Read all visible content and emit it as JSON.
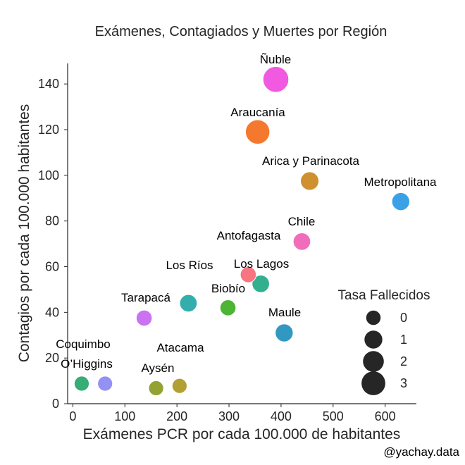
{
  "chart_data": {
    "type": "scatter",
    "title": "Exámenes, Contagiados y Muertes por Región",
    "xlabel": "Exámenes PCR por cada 100.000 de habitantes",
    "ylabel": "Contagios por cada 100.000 habitantes",
    "xlim": [
      -10,
      660
    ],
    "ylim": [
      0,
      149
    ],
    "xticks": [
      "0",
      "100",
      "200",
      "300",
      "400",
      "500",
      "600"
    ],
    "yticks": [
      "0",
      "20",
      "40",
      "60",
      "80",
      "100",
      "120",
      "140"
    ],
    "grid": false,
    "points": [
      {
        "label": "Ñuble",
        "x": 390,
        "y": 142,
        "size": 2.8,
        "color": "#f15ae0"
      },
      {
        "label": "Araucanía",
        "x": 355,
        "y": 119,
        "size": 2.5,
        "color": "#f4792e"
      },
      {
        "label": "Arica y Parinacota",
        "x": 455,
        "y": 97.5,
        "size": 1.3,
        "color": "#cf9130"
      },
      {
        "label": "Metropolitana",
        "x": 630,
        "y": 88.5,
        "size": 1.2,
        "color": "#3aa1e7"
      },
      {
        "label": "Chile",
        "x": 440,
        "y": 71,
        "size": 1.1,
        "color": "#f16dbb"
      },
      {
        "label": "Antofagasta",
        "x": 440,
        "y": 71,
        "size": 0,
        "color": "#f16dbb"
      },
      {
        "label": "Los Lagos",
        "x": 361,
        "y": 52.5,
        "size": 1.1,
        "color": "#32b08e"
      },
      {
        "label": "Los Ríos",
        "x": 337,
        "y": 56.5,
        "size": 0.8,
        "color": "#f77480"
      },
      {
        "label": "Biobío",
        "x": 298,
        "y": 42,
        "size": 0.8,
        "color": "#4db434"
      },
      {
        "label": "Tarapacá",
        "x": 222,
        "y": 44,
        "size": 1.1,
        "color": "#34adad"
      },
      {
        "label": "Maule",
        "x": 406,
        "y": 31,
        "size": 1.2,
        "color": "#3199c1"
      },
      {
        "label": "",
        "x": 137,
        "y": 37.5,
        "size": 0.8,
        "color": "#cb72f3"
      },
      {
        "label": "O’Higgins",
        "x": 17,
        "y": 8.8,
        "size": 0.6,
        "color": "#36ad76"
      },
      {
        "label": "Coquimbo",
        "x": 62,
        "y": 8.8,
        "size": 0.6,
        "color": "#9590f3"
      },
      {
        "label": "Aysén",
        "x": 160,
        "y": 6.8,
        "size": 0.6,
        "color": "#93a233"
      },
      {
        "label": "Atacama",
        "x": 205,
        "y": 7.8,
        "size": 0.6,
        "color": "#b3a033"
      }
    ],
    "legend": {
      "title": "Tasa Fallecidos",
      "placement": "lower-right",
      "color": "#262626",
      "entries": [
        {
          "label": "0",
          "size": 0.5
        },
        {
          "label": "1",
          "size": 1.2
        },
        {
          "label": "2",
          "size": 1.8
        },
        {
          "label": "3",
          "size": 2.4
        }
      ]
    }
  },
  "credit": "@yachay.data"
}
